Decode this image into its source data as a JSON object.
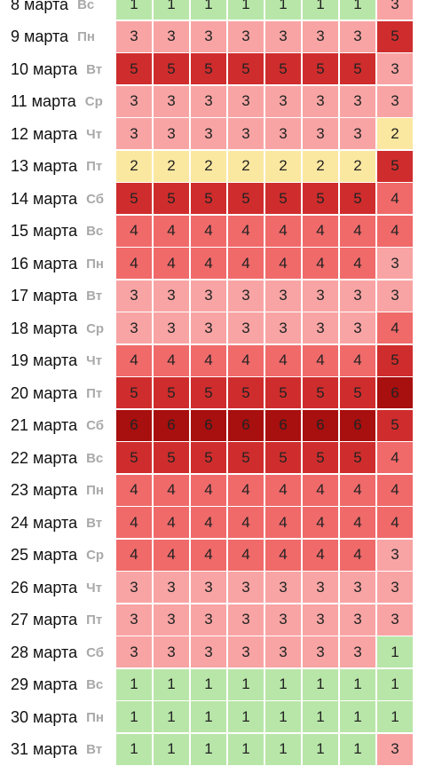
{
  "rows": [
    {
      "date": "8 марта",
      "dow": "Вс",
      "values": [
        1,
        1,
        1,
        1,
        1,
        1,
        1
      ],
      "last": 3
    },
    {
      "date": "9 марта",
      "dow": "Пн",
      "values": [
        3,
        3,
        3,
        3,
        3,
        3,
        3
      ],
      "last": 5
    },
    {
      "date": "10 марта",
      "dow": "Вт",
      "values": [
        5,
        5,
        5,
        5,
        5,
        5,
        5
      ],
      "last": 3
    },
    {
      "date": "11 марта",
      "dow": "Ср",
      "values": [
        3,
        3,
        3,
        3,
        3,
        3,
        3
      ],
      "last": 3
    },
    {
      "date": "12 марта",
      "dow": "Чт",
      "values": [
        3,
        3,
        3,
        3,
        3,
        3,
        3
      ],
      "last": 2
    },
    {
      "date": "13 марта",
      "dow": "Пт",
      "values": [
        2,
        2,
        2,
        2,
        2,
        2,
        2
      ],
      "last": 5
    },
    {
      "date": "14 марта",
      "dow": "Сб",
      "values": [
        5,
        5,
        5,
        5,
        5,
        5,
        5
      ],
      "last": 4
    },
    {
      "date": "15 марта",
      "dow": "Вс",
      "values": [
        4,
        4,
        4,
        4,
        4,
        4,
        4
      ],
      "last": 4
    },
    {
      "date": "16 марта",
      "dow": "Пн",
      "values": [
        4,
        4,
        4,
        4,
        4,
        4,
        4
      ],
      "last": 3
    },
    {
      "date": "17 марта",
      "dow": "Вт",
      "values": [
        3,
        3,
        3,
        3,
        3,
        3,
        3
      ],
      "last": 3
    },
    {
      "date": "18 марта",
      "dow": "Ср",
      "values": [
        3,
        3,
        3,
        3,
        3,
        3,
        3
      ],
      "last": 4
    },
    {
      "date": "19 марта",
      "dow": "Чт",
      "values": [
        4,
        4,
        4,
        4,
        4,
        4,
        4
      ],
      "last": 5
    },
    {
      "date": "20 марта",
      "dow": "Пт",
      "values": [
        5,
        5,
        5,
        5,
        5,
        5,
        5
      ],
      "last": 6
    },
    {
      "date": "21 марта",
      "dow": "Сб",
      "values": [
        6,
        6,
        6,
        6,
        6,
        6,
        6
      ],
      "last": 5
    },
    {
      "date": "22 марта",
      "dow": "Вс",
      "values": [
        5,
        5,
        5,
        5,
        5,
        5,
        5
      ],
      "last": 4
    },
    {
      "date": "23 марта",
      "dow": "Пн",
      "values": [
        4,
        4,
        4,
        4,
        4,
        4,
        4
      ],
      "last": 4
    },
    {
      "date": "24 марта",
      "dow": "Вт",
      "values": [
        4,
        4,
        4,
        4,
        4,
        4,
        4
      ],
      "last": 4
    },
    {
      "date": "25 марта",
      "dow": "Ср",
      "values": [
        4,
        4,
        4,
        4,
        4,
        4,
        4
      ],
      "last": 3
    },
    {
      "date": "26 марта",
      "dow": "Чт",
      "values": [
        3,
        3,
        3,
        3,
        3,
        3,
        3
      ],
      "last": 3
    },
    {
      "date": "27 марта",
      "dow": "Пт",
      "values": [
        3,
        3,
        3,
        3,
        3,
        3,
        3
      ],
      "last": 3
    },
    {
      "date": "28 марта",
      "dow": "Сб",
      "values": [
        3,
        3,
        3,
        3,
        3,
        3,
        3
      ],
      "last": 1
    },
    {
      "date": "29 марта",
      "dow": "Вс",
      "values": [
        1,
        1,
        1,
        1,
        1,
        1,
        1
      ],
      "last": 1
    },
    {
      "date": "30 марта",
      "dow": "Пн",
      "values": [
        1,
        1,
        1,
        1,
        1,
        1,
        1
      ],
      "last": 1
    },
    {
      "date": "31 марта",
      "dow": "Вт",
      "values": [
        1,
        1,
        1,
        1,
        1,
        1,
        1
      ],
      "last": 3
    }
  ],
  "level_colors": {
    "1": "#b8e6a8",
    "2": "#fbe8a0",
    "3": "#f9a4a4",
    "4": "#f06a6a",
    "5": "#cf2d2d",
    "6": "#a80f0f"
  }
}
